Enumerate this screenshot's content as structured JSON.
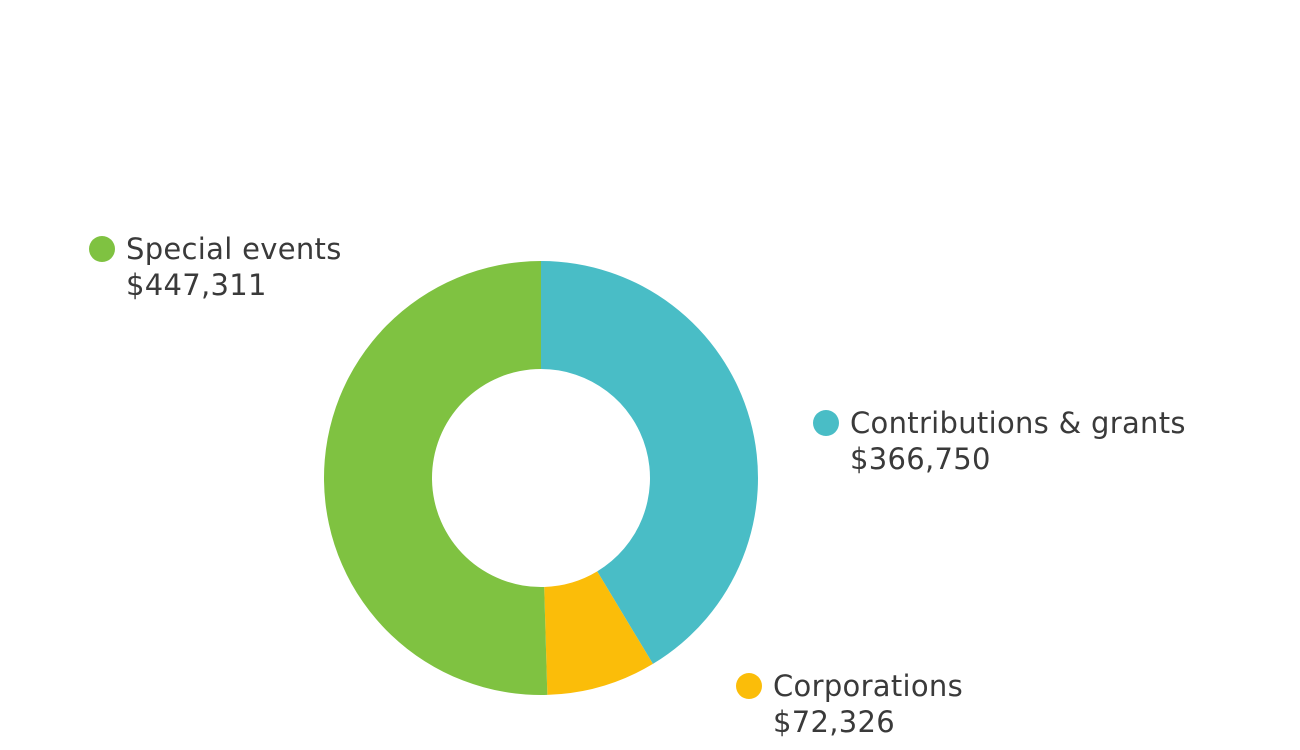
{
  "chart_data": {
    "type": "pie",
    "donut": true,
    "title": "",
    "categories": [
      "Contributions & grants",
      "Corporations",
      "Special events"
    ],
    "values": [
      366750,
      72326,
      447311
    ],
    "value_labels": [
      "$366,750",
      "$72,326",
      "$447,311"
    ],
    "colors": [
      "#49bdc6",
      "#fbbd09",
      "#7fc241"
    ],
    "legend_placement": "labels beside slices"
  }
}
